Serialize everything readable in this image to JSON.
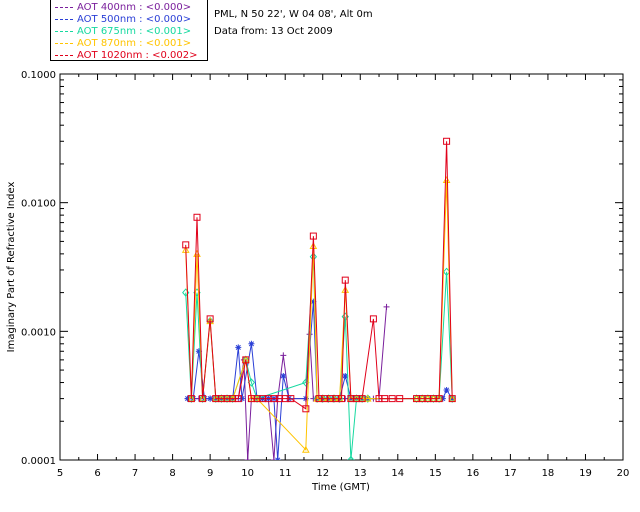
{
  "header": {
    "site": "PML, N 50 22', W 04 08', Alt 0m",
    "date": "Data from: 13 Oct 2009"
  },
  "legend": [
    {
      "label": "AOT  400nm : <0.000>",
      "color": "#7a1f9c"
    },
    {
      "label": "AOT  500nm : <0.000>",
      "color": "#2a3fd6"
    },
    {
      "label": "AOT  675nm : <0.001>",
      "color": "#16d9a0"
    },
    {
      "label": "AOT  870nm : <0.001>",
      "color": "#ffc400"
    },
    {
      "label": "AOT 1020nm : <0.002>",
      "color": "#e0001a"
    }
  ],
  "chart_data": {
    "type": "line",
    "title": "",
    "xlabel": "Time (GMT)",
    "ylabel": "Imaginary Part of Refractive Index",
    "xlim": [
      5,
      20
    ],
    "ylim": [
      0.0001,
      0.1
    ],
    "yscale": "log",
    "xticks": [
      "5",
      "6",
      "7",
      "8",
      "9",
      "10",
      "11",
      "12",
      "13",
      "14",
      "15",
      "16",
      "17",
      "18",
      "19",
      "20"
    ],
    "yticks": [
      "0.0001",
      "0.0010",
      "0.0100",
      "0.1000"
    ],
    "series": [
      {
        "name": "AOT  400nm",
        "color": "#7a1f9c",
        "marker": "plus",
        "x": [
          8.4,
          8.55,
          8.7,
          8.85,
          9.0,
          9.15,
          9.3,
          9.45,
          9.6,
          9.75,
          9.9,
          10.0,
          10.1,
          10.25,
          10.4,
          10.55,
          10.7,
          10.8,
          10.95,
          11.1,
          11.55,
          11.65,
          11.75,
          11.85,
          12.0,
          12.15,
          12.3,
          12.45,
          12.6,
          12.75,
          12.9,
          13.05,
          13.2,
          13.35,
          13.5,
          13.7
        ],
        "y": [
          0.0003,
          0.0003,
          0.0003,
          0.0003,
          0.0003,
          0.0003,
          0.0003,
          0.0003,
          0.0003,
          0.0003,
          0.0006,
          0.0001,
          0.0003,
          0.0003,
          0.0003,
          0.0003,
          0.0001,
          0.0003,
          0.00065,
          0.0003,
          0.0003,
          0.00095,
          0.0003,
          0.0003,
          0.0003,
          0.0003,
          0.0003,
          0.0003,
          0.0003,
          0.0003,
          0.0003,
          0.0003,
          0.0003,
          0.0003,
          0.0003,
          0.00155
        ]
      },
      {
        "name": "AOT  500nm",
        "color": "#2a3fd6",
        "marker": "star",
        "x": [
          8.4,
          8.55,
          8.7,
          8.85,
          9.0,
          9.15,
          9.3,
          9.45,
          9.6,
          9.75,
          9.85,
          10.1,
          10.25,
          10.4,
          10.55,
          10.7,
          10.8,
          10.95,
          11.1,
          11.55,
          11.75,
          11.85,
          12.0,
          12.15,
          12.3,
          12.45,
          12.6,
          12.75,
          12.9,
          13.05,
          13.2,
          15.2,
          15.3,
          15.45
        ],
        "y": [
          0.0003,
          0.0003,
          0.0007,
          0.0003,
          0.0003,
          0.0003,
          0.0003,
          0.0003,
          0.0003,
          0.00075,
          0.0003,
          0.0008,
          0.0003,
          0.0003,
          0.0003,
          0.0003,
          0.0001,
          0.00045,
          0.0003,
          0.0003,
          0.0017,
          0.0003,
          0.0003,
          0.0003,
          0.0003,
          0.0003,
          0.00045,
          0.0003,
          0.0003,
          0.0003,
          0.0003,
          0.0003,
          0.00035,
          0.0003
        ]
      },
      {
        "name": "AOT  675nm",
        "color": "#16d9a0",
        "marker": "diamond",
        "x": [
          8.35,
          8.5,
          8.65,
          8.8,
          9.0,
          9.15,
          9.3,
          9.45,
          9.6,
          9.95,
          10.1,
          10.25,
          11.55,
          11.75,
          11.85,
          12.0,
          12.15,
          12.3,
          12.45,
          12.6,
          12.75,
          12.9,
          13.05,
          13.2,
          14.5,
          14.65,
          14.8,
          14.95,
          15.1,
          15.3,
          15.45
        ],
        "y": [
          0.002,
          0.0003,
          0.002,
          0.0003,
          0.0012,
          0.0003,
          0.0003,
          0.0003,
          0.0003,
          0.0006,
          0.0004,
          0.0003,
          0.0004,
          0.0038,
          0.0003,
          0.0003,
          0.0003,
          0.0003,
          0.0003,
          0.0013,
          0.0001,
          0.0003,
          0.0003,
          0.0003,
          0.0003,
          0.0003,
          0.0003,
          0.0003,
          0.0003,
          0.0029,
          0.0003
        ]
      },
      {
        "name": "AOT  870nm",
        "color": "#ffc400",
        "marker": "triangle",
        "x": [
          8.35,
          8.5,
          8.65,
          8.8,
          9.0,
          9.15,
          9.3,
          9.45,
          9.6,
          9.95,
          10.1,
          10.25,
          11.55,
          11.75,
          11.85,
          12.0,
          12.15,
          12.3,
          12.45,
          12.6,
          12.75,
          12.9,
          13.05,
          13.2,
          14.5,
          14.65,
          14.8,
          14.95,
          15.1,
          15.3,
          15.45
        ],
        "y": [
          0.0043,
          0.0003,
          0.004,
          0.0003,
          0.0012,
          0.0003,
          0.0003,
          0.0003,
          0.0003,
          0.0006,
          0.0003,
          0.0003,
          0.00012,
          0.0046,
          0.0003,
          0.0003,
          0.0003,
          0.0003,
          0.0003,
          0.0021,
          0.0003,
          0.0003,
          0.0003,
          0.0003,
          0.0003,
          0.0003,
          0.0003,
          0.0003,
          0.0003,
          0.015,
          0.0003
        ]
      },
      {
        "name": "AOT 1020nm",
        "color": "#e0001a",
        "marker": "square",
        "x": [
          8.35,
          8.5,
          8.65,
          8.8,
          9.0,
          9.15,
          9.3,
          9.45,
          9.6,
          9.75,
          9.95,
          10.1,
          10.25,
          10.4,
          10.55,
          10.7,
          10.85,
          11.0,
          11.15,
          11.55,
          11.75,
          11.9,
          12.05,
          12.2,
          12.35,
          12.5,
          12.6,
          12.75,
          12.9,
          13.05,
          13.35,
          13.5,
          13.65,
          13.85,
          14.05,
          14.5,
          14.65,
          14.8,
          14.95,
          15.1,
          15.3,
          15.45
        ],
        "y": [
          0.0047,
          0.0003,
          0.0077,
          0.0003,
          0.00125,
          0.0003,
          0.0003,
          0.0003,
          0.0003,
          0.0003,
          0.0006,
          0.0003,
          0.0003,
          0.0003,
          0.0003,
          0.0003,
          0.0003,
          0.0003,
          0.0003,
          0.00025,
          0.0055,
          0.0003,
          0.0003,
          0.0003,
          0.0003,
          0.0003,
          0.0025,
          0.0003,
          0.0003,
          0.0003,
          0.00125,
          0.0003,
          0.0003,
          0.0003,
          0.0003,
          0.0003,
          0.0003,
          0.0003,
          0.0003,
          0.0003,
          0.03,
          0.0003
        ]
      }
    ]
  }
}
